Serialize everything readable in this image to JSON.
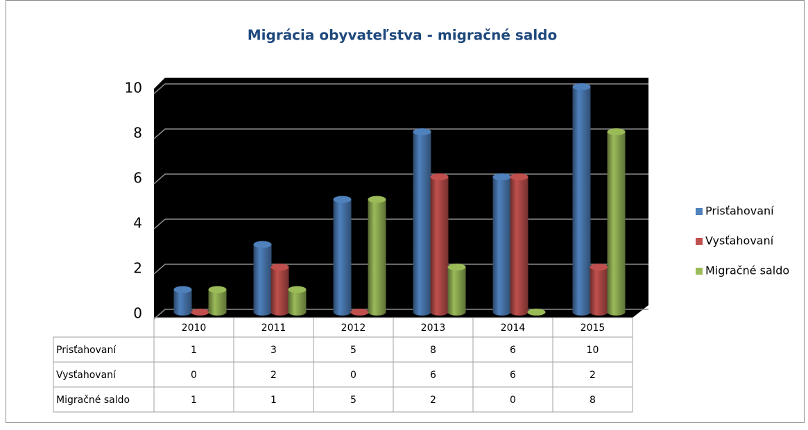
{
  "chart_data": {
    "type": "bar3d",
    "title": "Migrácia obyvateľstva - migračné saldo",
    "categories": [
      "2010",
      "2011",
      "2012",
      "2013",
      "2014",
      "2015"
    ],
    "series": [
      {
        "name": "Prisťahovaní",
        "color": "#4f81bd",
        "values": [
          1,
          3,
          5,
          8,
          6,
          10
        ]
      },
      {
        "name": "Vysťahovaní",
        "color": "#c0504d",
        "values": [
          0,
          2,
          0,
          6,
          6,
          2
        ]
      },
      {
        "name": "Migračné saldo",
        "color": "#9bbb59",
        "values": [
          1,
          1,
          5,
          2,
          0,
          8
        ]
      }
    ],
    "ylim": [
      0,
      10
    ],
    "yticks": [
      0,
      2,
      4,
      6,
      8,
      10
    ],
    "grid": true,
    "legend": "right",
    "data_table": true
  }
}
